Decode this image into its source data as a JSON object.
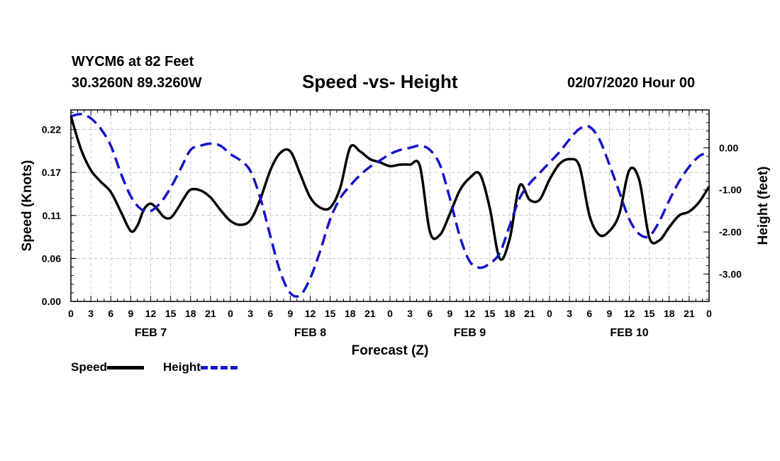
{
  "header": {
    "station": "WYCM6 at 82 Feet",
    "coords": "30.3260N 89.3260W",
    "title": "Speed -vs- Height",
    "run_time": "02/07/2020 Hour 00"
  },
  "legend": {
    "speed_label": "Speed",
    "height_label": "Height"
  },
  "colors": {
    "speed": "#000000",
    "height": "#1515c8",
    "grid": "#c8c8c8"
  },
  "chart_data": {
    "type": "line",
    "title": "Speed -vs- Height",
    "xlabel": "Forecast (Z)",
    "ylabel_left": "Speed (Knots)",
    "ylabel_right": "Height (feet)",
    "x_unit": "hours since 02/07/2020 00Z",
    "xlim": [
      0,
      96
    ],
    "ylim_left": [
      0,
      0.245
    ],
    "ylim_right": [
      -3.65,
      0.9
    ],
    "x_ticks": [
      0,
      3,
      6,
      9,
      12,
      15,
      18,
      21,
      24,
      27,
      30,
      33,
      36,
      39,
      42,
      45,
      48,
      51,
      54,
      57,
      60,
      63,
      66,
      69,
      72,
      75,
      78,
      81,
      84,
      87,
      90,
      93,
      96
    ],
    "x_tick_labels": [
      "0",
      "3",
      "6",
      "9",
      "12",
      "15",
      "18",
      "21",
      "0",
      "3",
      "6",
      "9",
      "12",
      "15",
      "18",
      "21",
      "0",
      "3",
      "6",
      "9",
      "12",
      "15",
      "18",
      "21",
      "0",
      "3",
      "6",
      "9",
      "12",
      "15",
      "18",
      "21",
      "0"
    ],
    "day_labels": [
      {
        "x": 12,
        "label": "FEB 7"
      },
      {
        "x": 36,
        "label": "FEB 8"
      },
      {
        "x": 60,
        "label": "FEB 9"
      },
      {
        "x": 84,
        "label": "FEB 10"
      }
    ],
    "left_ticks": [
      0,
      0.055,
      0.11,
      0.165,
      0.22
    ],
    "left_tick_labels": [
      "0.00",
      "0.06",
      "0.11",
      "0.17",
      "0.22"
    ],
    "right_ticks": [
      0,
      -1,
      -2,
      -3
    ],
    "right_tick_labels": [
      "0.00",
      "-1.00",
      "-2.00",
      "-3.00"
    ],
    "grid": true,
    "legend_position": "bottom-left",
    "series": [
      {
        "name": "Speed",
        "axis": "left",
        "style": "solid",
        "x": [
          0,
          1.5,
          3,
          4.5,
          6,
          7.5,
          9,
          10,
          11,
          12,
          13,
          14,
          15,
          16,
          17,
          18,
          19.5,
          21,
          22.5,
          24,
          25.5,
          27,
          28.5,
          30,
          31.5,
          33,
          34.5,
          36,
          37.5,
          39,
          40.5,
          42,
          43.5,
          45,
          46.5,
          48,
          49.5,
          51,
          52.5,
          54,
          55.5,
          57,
          58.5,
          60,
          61.5,
          63,
          64.5,
          66,
          67.5,
          69,
          70.5,
          72,
          73.5,
          75,
          76.5,
          78,
          79.5,
          81,
          82.5,
          84,
          85.5,
          87,
          88.5,
          90,
          91.5,
          93,
          94.5,
          96
        ],
        "values": [
          0.237,
          0.195,
          0.168,
          0.153,
          0.14,
          0.115,
          0.09,
          0.097,
          0.118,
          0.125,
          0.118,
          0.108,
          0.107,
          0.118,
          0.132,
          0.143,
          0.142,
          0.133,
          0.117,
          0.103,
          0.098,
          0.104,
          0.131,
          0.168,
          0.19,
          0.192,
          0.163,
          0.133,
          0.12,
          0.12,
          0.145,
          0.197,
          0.192,
          0.182,
          0.178,
          0.173,
          0.175,
          0.175,
          0.173,
          0.089,
          0.085,
          0.112,
          0.142,
          0.158,
          0.163,
          0.12,
          0.055,
          0.08,
          0.148,
          0.13,
          0.13,
          0.156,
          0.176,
          0.182,
          0.173,
          0.11,
          0.085,
          0.09,
          0.112,
          0.168,
          0.155,
          0.082,
          0.078,
          0.095,
          0.11,
          0.115,
          0.127,
          0.147
        ]
      },
      {
        "name": "Height",
        "axis": "right",
        "style": "dashed",
        "x": [
          0,
          1.5,
          3,
          4.5,
          6,
          7.5,
          9,
          10.5,
          12,
          13.5,
          15,
          16.5,
          18,
          19.5,
          21,
          22.5,
          24,
          25.5,
          27,
          28.5,
          30,
          31.5,
          33,
          34.5,
          36,
          37.5,
          39,
          40.5,
          42,
          43.5,
          45,
          46.5,
          48,
          49.5,
          51,
          52.5,
          54,
          55.5,
          57,
          58.5,
          60,
          61.5,
          63,
          64.5,
          66,
          67.5,
          69,
          70.5,
          72,
          73.5,
          75,
          76.5,
          78,
          79.5,
          81,
          82.5,
          84,
          85.5,
          87,
          88.5,
          90,
          91.5,
          93,
          94.5,
          96
        ],
        "values": [
          0.75,
          0.8,
          0.7,
          0.45,
          0.05,
          -0.6,
          -1.15,
          -1.45,
          -1.5,
          -1.3,
          -0.95,
          -0.5,
          -0.05,
          0.05,
          0.1,
          0.05,
          -0.15,
          -0.3,
          -0.55,
          -1.2,
          -2.1,
          -2.95,
          -3.45,
          -3.5,
          -3.1,
          -2.45,
          -1.7,
          -1.2,
          -0.9,
          -0.65,
          -0.45,
          -0.3,
          -0.15,
          -0.05,
          0.0,
          0.05,
          -0.05,
          -0.4,
          -1.2,
          -2.1,
          -2.7,
          -2.85,
          -2.75,
          -2.5,
          -1.85,
          -1.2,
          -0.85,
          -0.6,
          -0.35,
          -0.1,
          0.2,
          0.45,
          0.5,
          0.2,
          -0.4,
          -1.05,
          -1.7,
          -2.05,
          -2.1,
          -1.75,
          -1.25,
          -0.8,
          -0.45,
          -0.2,
          -0.1
        ]
      }
    ]
  }
}
